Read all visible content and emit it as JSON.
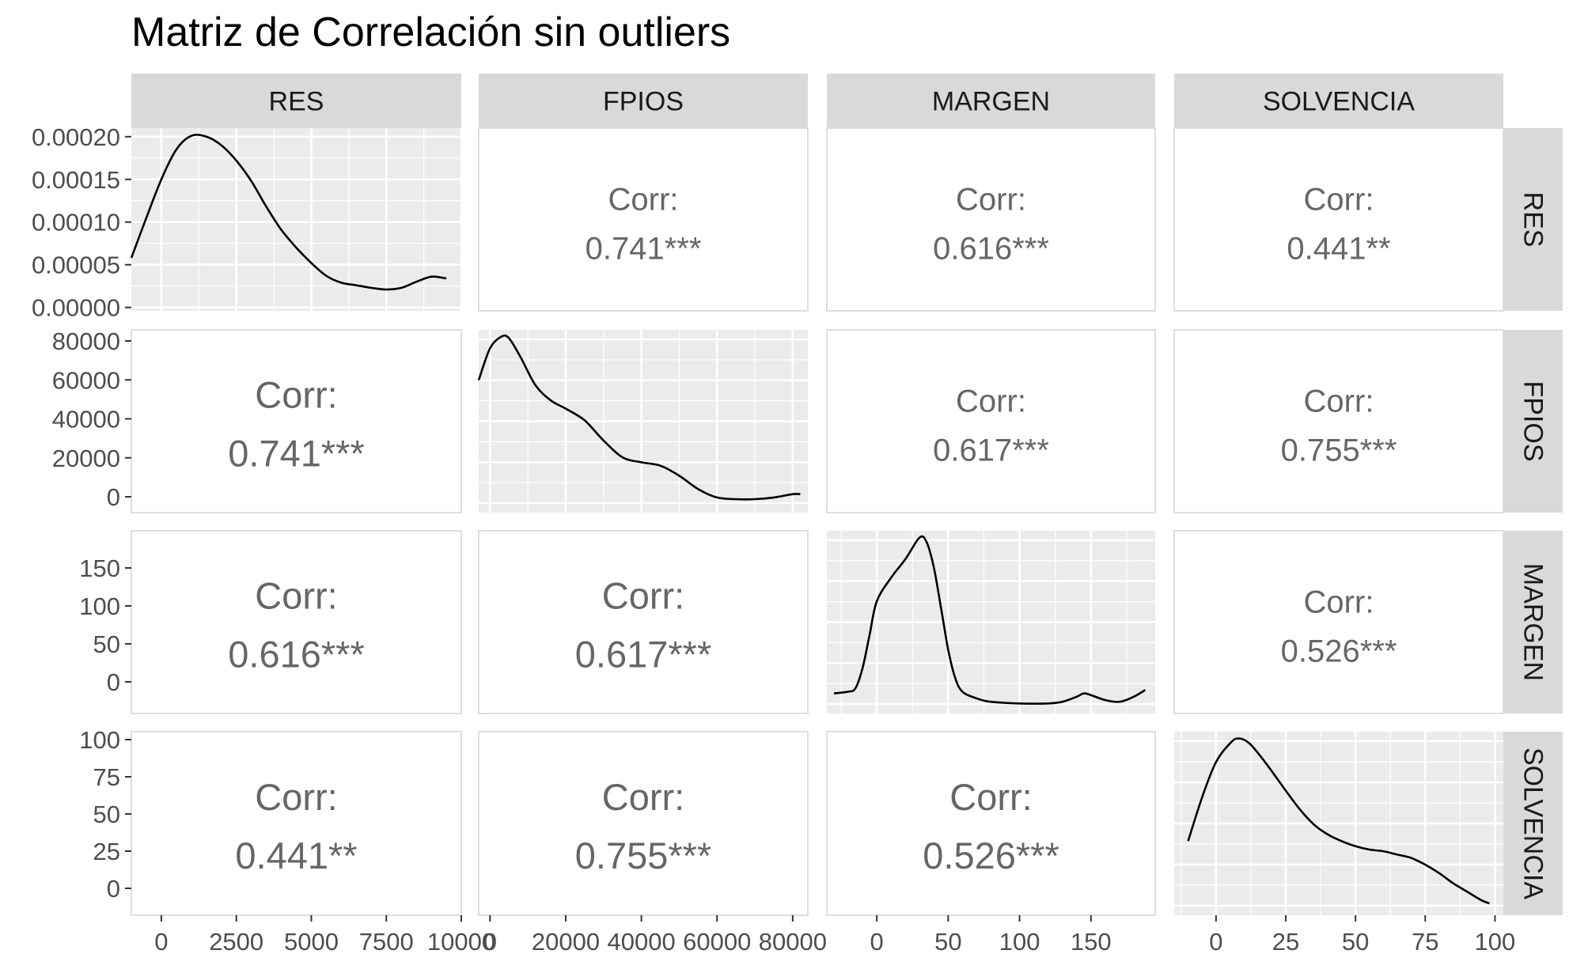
{
  "chart_data": {
    "type": "pairs",
    "title": "Matriz de Correlación sin outliers",
    "variables": [
      "RES",
      "FPIOS",
      "MARGEN",
      "SOLVENCIA"
    ],
    "correlation_label": "Corr:",
    "correlations": [
      {
        "row": "FPIOS",
        "col": "RES",
        "text": "0.741***",
        "value": 0.741
      },
      {
        "row": "MARGEN",
        "col": "RES",
        "text": "0.616***",
        "value": 0.616
      },
      {
        "row": "SOLVENCIA",
        "col": "RES",
        "text": "0.441**",
        "value": 0.441
      },
      {
        "row": "MARGEN",
        "col": "FPIOS",
        "text": "0.617***",
        "value": 0.617
      },
      {
        "row": "SOLVENCIA",
        "col": "FPIOS",
        "text": "0.755***",
        "value": 0.755
      },
      {
        "row": "SOLVENCIA",
        "col": "MARGEN",
        "text": "0.526***",
        "value": 0.526
      }
    ],
    "x_axes": [
      {
        "var": "RES",
        "range": [
          -1000,
          10000
        ],
        "ticks": [
          0,
          2500,
          5000,
          7500,
          10000
        ],
        "tick_labels": [
          "0",
          "2500",
          "5000",
          "7500",
          "10000"
        ]
      },
      {
        "var": "FPIOS",
        "range": [
          -3000,
          84000
        ],
        "ticks": [
          0,
          20000,
          40000,
          60000,
          80000
        ],
        "tick_labels": [
          "0",
          "20000",
          "40000",
          "60000",
          "80000"
        ]
      },
      {
        "var": "MARGEN",
        "range": [
          -35,
          195
        ],
        "ticks": [
          0,
          50,
          100,
          150
        ],
        "tick_labels": [
          "0",
          "50",
          "100",
          "150"
        ]
      },
      {
        "var": "SOLVENCIA",
        "range": [
          -15,
          103
        ],
        "ticks": [
          0,
          25,
          50,
          75,
          100
        ],
        "tick_labels": [
          "0",
          "25",
          "50",
          "75",
          "100"
        ]
      }
    ],
    "y_axes": [
      {
        "var": "RES",
        "range": [
          -4e-06,
          0.00021
        ],
        "ticks": [
          0,
          5e-05,
          0.0001,
          0.00015,
          0.0002
        ],
        "tick_labels": [
          "0.00000",
          "0.00005",
          "0.00010",
          "0.00015",
          "0.00020"
        ]
      },
      {
        "var": "FPIOS",
        "ticks": [
          0,
          20000,
          40000,
          60000,
          80000
        ],
        "tick_labels": [
          "0",
          "20000",
          "40000",
          "60000",
          "80000"
        ]
      },
      {
        "var": "MARGEN",
        "ticks": [
          0,
          50,
          100,
          150
        ],
        "tick_labels": [
          "0",
          "50",
          "100",
          "150"
        ]
      },
      {
        "var": "SOLVENCIA",
        "ticks": [
          0,
          25,
          50,
          75,
          100
        ],
        "tick_labels": [
          "0",
          "25",
          "50",
          "75",
          "100"
        ]
      }
    ],
    "densities": [
      {
        "var": "RES",
        "x": [
          -1000,
          -500,
          0,
          500,
          1000,
          1500,
          2000,
          2500,
          3000,
          3500,
          4000,
          4500,
          5000,
          5500,
          6000,
          6500,
          7000,
          7500,
          8000,
          8500,
          9000,
          9500
        ],
        "y": [
          5.8e-05,
          0.000105,
          0.00015,
          0.000185,
          0.000201,
          0.0002,
          0.00019,
          0.000172,
          0.000148,
          0.000118,
          9.1e-05,
          7e-05,
          5.2e-05,
          3.7e-05,
          2.9e-05,
          2.6e-05,
          2.3e-05,
          2.1e-05,
          2.3e-05,
          3e-05,
          3.6e-05,
          3.4e-05
        ]
      },
      {
        "var": "FPIOS",
        "x": [
          -3000,
          0,
          3000,
          5000,
          8000,
          12000,
          16000,
          20000,
          25000,
          30000,
          35000,
          40000,
          45000,
          50000,
          55000,
          60000,
          65000,
          70000,
          75000,
          80000,
          82000
        ],
        "y": [
          0.74,
          0.93,
          1.0,
          0.99,
          0.88,
          0.71,
          0.62,
          0.57,
          0.5,
          0.38,
          0.28,
          0.25,
          0.23,
          0.17,
          0.09,
          0.04,
          0.03,
          0.03,
          0.04,
          0.06,
          0.06
        ]
      },
      {
        "var": "MARGEN",
        "x": [
          -30,
          -20,
          -15,
          -10,
          -5,
          0,
          10,
          20,
          30,
          35,
          40,
          45,
          50,
          55,
          60,
          70,
          80,
          100,
          120,
          130,
          140,
          145,
          150,
          160,
          170,
          180,
          188
        ],
        "y": [
          0.07,
          0.08,
          0.1,
          0.22,
          0.42,
          0.62,
          0.76,
          0.87,
          1.0,
          0.97,
          0.82,
          0.58,
          0.33,
          0.16,
          0.08,
          0.04,
          0.02,
          0.01,
          0.01,
          0.02,
          0.05,
          0.07,
          0.06,
          0.03,
          0.02,
          0.05,
          0.09
        ]
      },
      {
        "var": "SOLVENCIA",
        "x": [
          -10,
          -5,
          0,
          5,
          8,
          12,
          18,
          25,
          30,
          35,
          40,
          45,
          50,
          55,
          60,
          65,
          70,
          75,
          80,
          85,
          90,
          95,
          98
        ],
        "y": [
          0.39,
          0.65,
          0.86,
          0.97,
          1.0,
          0.97,
          0.85,
          0.69,
          0.58,
          0.49,
          0.43,
          0.39,
          0.36,
          0.34,
          0.33,
          0.31,
          0.29,
          0.25,
          0.2,
          0.14,
          0.09,
          0.04,
          0.02
        ]
      }
    ]
  }
}
